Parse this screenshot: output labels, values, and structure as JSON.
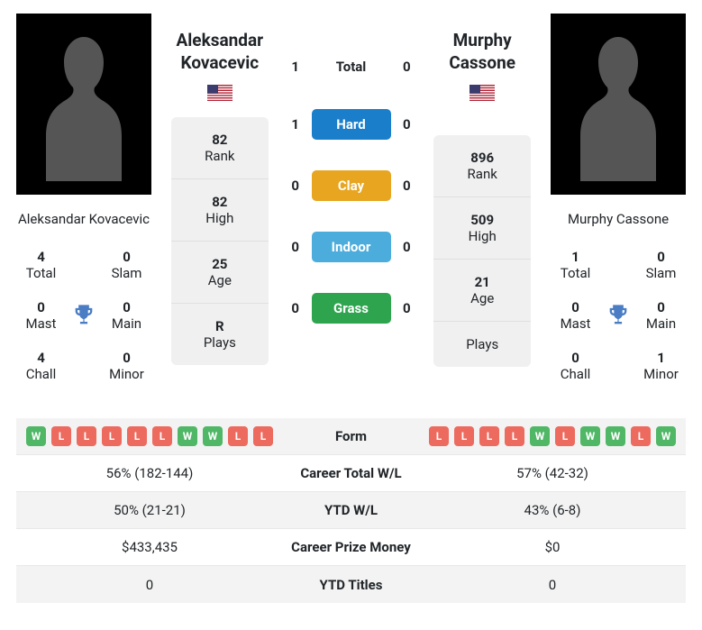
{
  "player1": {
    "name_full": "Aleksandar Kovacevic",
    "name_header": "Aleksandar\nKovacevic",
    "country": "USA",
    "titles": {
      "total": "4",
      "total_lbl": "Total",
      "slam": "0",
      "slam_lbl": "Slam",
      "mast": "0",
      "mast_lbl": "Mast",
      "main": "0",
      "main_lbl": "Main",
      "chall": "4",
      "chall_lbl": "Chall",
      "minor": "0",
      "minor_lbl": "Minor"
    },
    "attrs": {
      "rank": "82",
      "rank_lbl": "Rank",
      "high": "82",
      "high_lbl": "High",
      "age": "25",
      "age_lbl": "Age",
      "plays": "R",
      "plays_lbl": "Plays"
    },
    "form": [
      "W",
      "L",
      "L",
      "L",
      "L",
      "L",
      "W",
      "W",
      "L",
      "L"
    ],
    "career_wl": "56% (182-144)",
    "ytd_wl": "50% (21-21)",
    "prize": "$433,435",
    "ytd_titles": "0"
  },
  "player2": {
    "name_full": "Murphy Cassone",
    "name_header": "Murphy\nCassone",
    "country": "USA",
    "titles": {
      "total": "1",
      "total_lbl": "Total",
      "slam": "0",
      "slam_lbl": "Slam",
      "mast": "0",
      "mast_lbl": "Mast",
      "main": "0",
      "main_lbl": "Main",
      "chall": "0",
      "chall_lbl": "Chall",
      "minor": "1",
      "minor_lbl": "Minor"
    },
    "attrs": {
      "rank": "896",
      "rank_lbl": "Rank",
      "high": "509",
      "high_lbl": "High",
      "age": "21",
      "age_lbl": "Age",
      "plays": "",
      "plays_lbl": "Plays"
    },
    "form": [
      "L",
      "L",
      "L",
      "L",
      "W",
      "L",
      "W",
      "W",
      "L",
      "W"
    ],
    "career_wl": "57% (42-32)",
    "ytd_wl": "43% (6-8)",
    "prize": "$0",
    "ytd_titles": "0"
  },
  "h2h": {
    "total_lbl": "Total",
    "hard_lbl": "Hard",
    "clay_lbl": "Clay",
    "indoor_lbl": "Indoor",
    "grass_lbl": "Grass",
    "p1": {
      "total": "1",
      "hard": "1",
      "clay": "0",
      "indoor": "0",
      "grass": "0"
    },
    "p2": {
      "total": "0",
      "hard": "0",
      "clay": "0",
      "indoor": "0",
      "grass": "0"
    }
  },
  "stats_labels": {
    "form": "Form",
    "career_wl": "Career Total W/L",
    "ytd_wl": "YTD W/L",
    "prize": "Career Prize Money",
    "ytd_titles": "YTD Titles"
  },
  "colors": {
    "win": "#50b766",
    "loss": "#ed6a5e",
    "hard": "#1b7eca",
    "clay": "#e7a520",
    "indoor": "#4cacdc",
    "grass": "#2ea44f",
    "trophy": "#4a7dc4",
    "silhouette": "#555555"
  }
}
